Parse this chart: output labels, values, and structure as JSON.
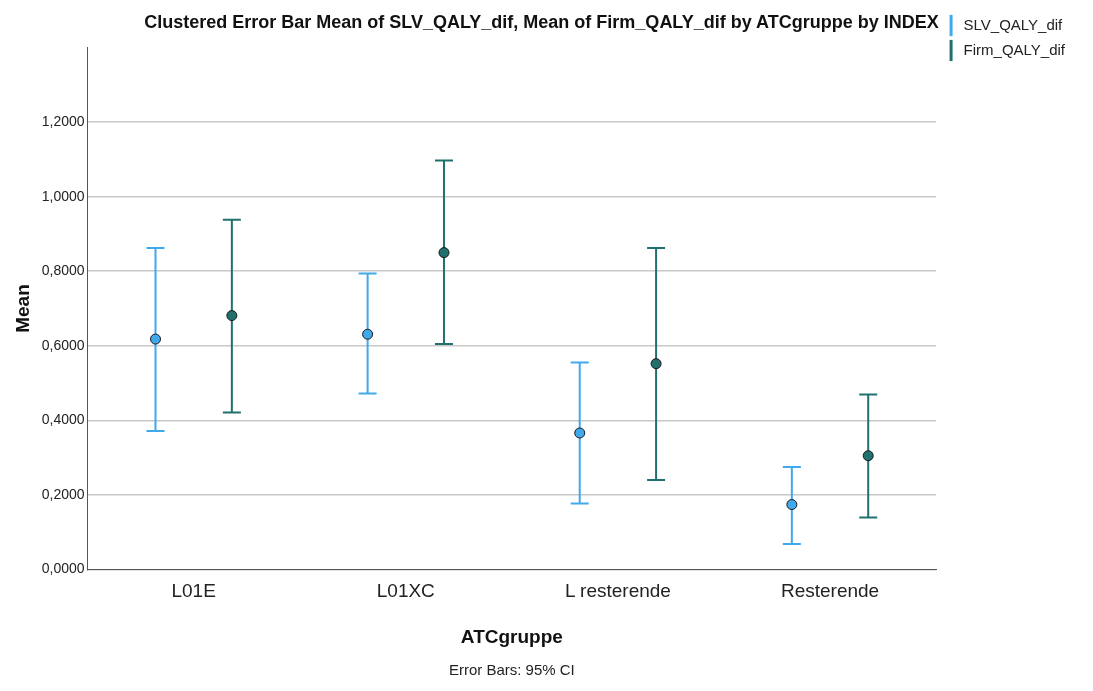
{
  "chart_data": {
    "type": "scatter",
    "title": "Clustered Error Bar Mean of SLV_QALY_dif, Mean of Firm_QALY_dif by ATCgruppe by INDEX",
    "xlabel": "ATCgruppe",
    "ylabel": "Mean",
    "categories": [
      "L01E",
      "L01XC",
      "L resterende",
      "Resterende"
    ],
    "series": [
      {
        "name": "SLV_QALY_dif",
        "color": "#3fa9ec",
        "values": [
          0.618,
          0.631,
          0.366,
          0.174
        ],
        "errors": [
          [
            0.371,
            0.862
          ],
          [
            0.472,
            0.794
          ],
          [
            0.177,
            0.555
          ],
          [
            0.068,
            0.275
          ]
        ]
      },
      {
        "name": "Firm_QALY_dif",
        "color": "#21706e",
        "values": [
          0.681,
          0.85,
          0.552,
          0.305
        ],
        "errors": [
          [
            0.421,
            0.938
          ],
          [
            0.605,
            1.097
          ],
          [
            0.24,
            0.862
          ],
          [
            0.139,
            0.469
          ]
        ]
      }
    ],
    "ylim": [
      0,
      1.4
    ],
    "yticks": [
      {
        "value": 0,
        "label": "0,0000"
      },
      {
        "value": 0.2,
        "label": "0,2000"
      },
      {
        "value": 0.4,
        "label": "0,4000"
      },
      {
        "value": 0.6,
        "label": "0,6000"
      },
      {
        "value": 0.8,
        "label": "0,8000"
      },
      {
        "value": 1,
        "label": "1,0000"
      },
      {
        "value": 1.2,
        "label": "1,2000"
      }
    ],
    "grid": "y",
    "legend": "top right",
    "marker": "circle",
    "annotations": [
      "Error Bars: 95% CI"
    ]
  }
}
